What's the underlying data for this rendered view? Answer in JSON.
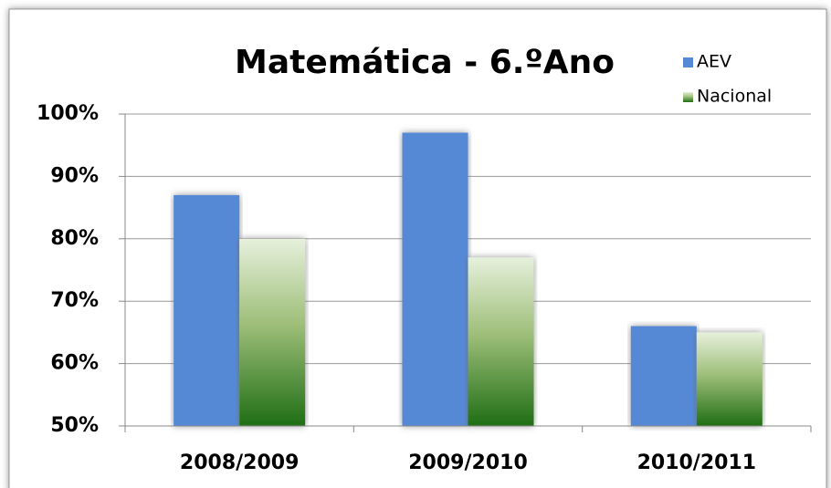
{
  "chart_data": {
    "type": "bar",
    "title": "Matemática - 6.ºAno",
    "categories": [
      "2008/2009",
      "2009/2010",
      "2010/2011"
    ],
    "series": [
      {
        "name": "AEV",
        "color": "#5589d6",
        "values": [
          87,
          97,
          66
        ]
      },
      {
        "name": "Nacional",
        "color": "#1f6e14",
        "values": [
          80,
          77,
          65
        ]
      }
    ],
    "ylim": [
      50,
      100
    ],
    "yticks": [
      {
        "value": 50,
        "label": "50%"
      },
      {
        "value": 60,
        "label": "60%"
      },
      {
        "value": 70,
        "label": "70%"
      },
      {
        "value": 80,
        "label": "80%"
      },
      {
        "value": 90,
        "label": "90%"
      },
      {
        "value": 100,
        "label": "100%"
      }
    ],
    "grid": true,
    "legend": "top-right"
  }
}
